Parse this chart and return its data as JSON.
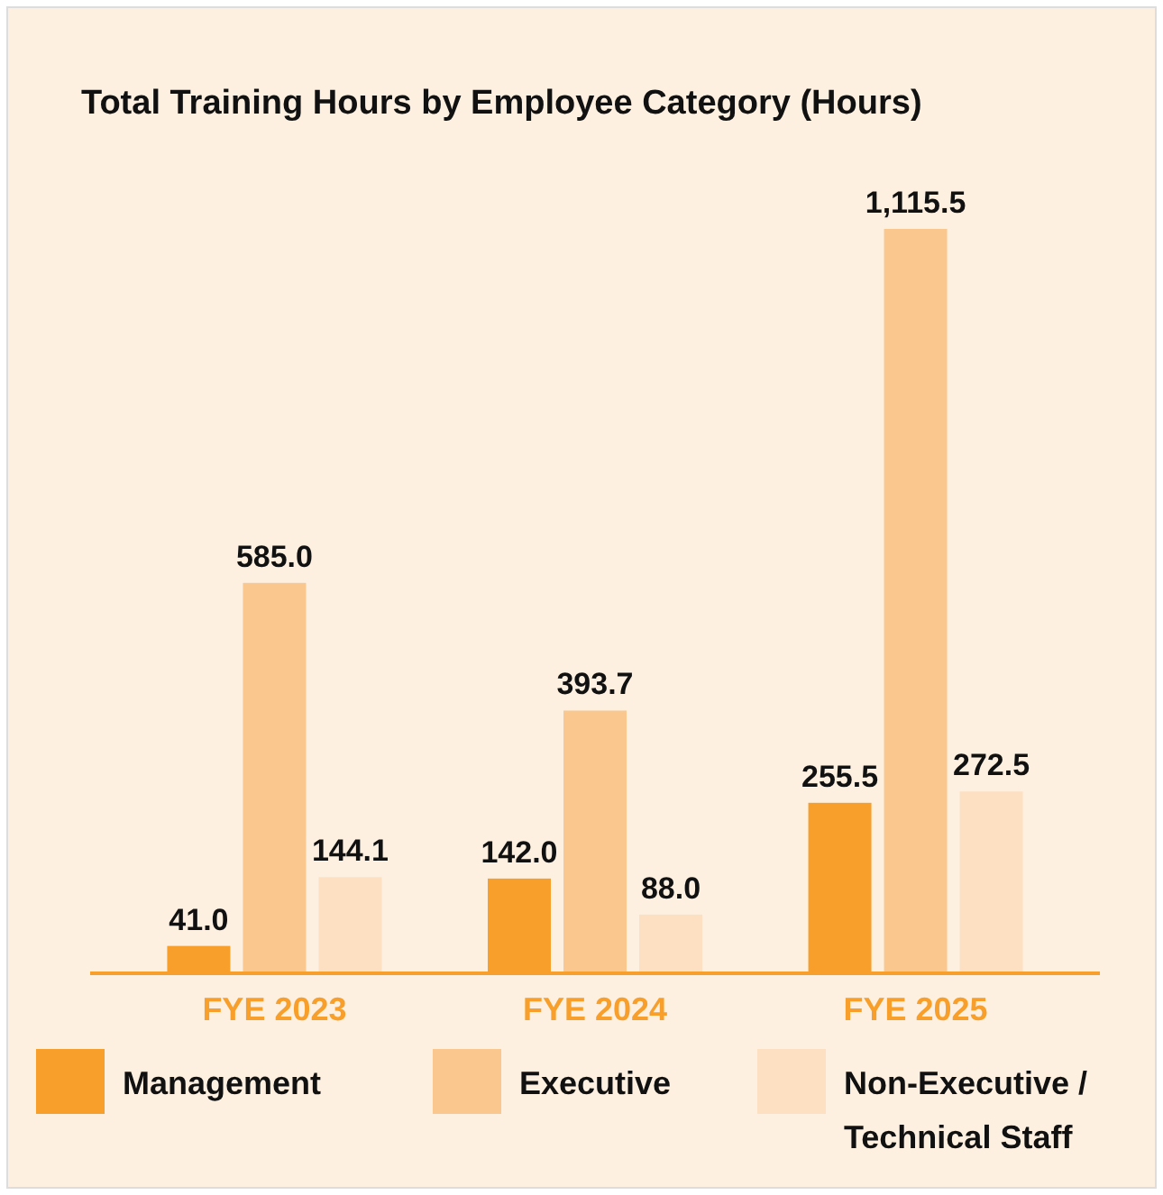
{
  "chart_data": {
    "type": "bar",
    "title": "Total Training Hours by Employee Category (Hours)",
    "categories": [
      "FYE 2023",
      "FYE 2024",
      "FYE 2025"
    ],
    "series": [
      {
        "name": "Management",
        "color": "#f79f2a",
        "values": [
          41.0,
          142.0,
          255.5
        ],
        "value_labels": [
          "41.0",
          "142.0",
          "255.5"
        ]
      },
      {
        "name": "Executive",
        "color": "#fac88e",
        "values": [
          585.0,
          393.7,
          1115.5
        ],
        "value_labels": [
          "585.0",
          "393.7",
          "1,115.5"
        ]
      },
      {
        "name": "Non-Executive / Technical Staff",
        "color": "#fde0c2",
        "values": [
          144.1,
          88.0,
          272.5
        ],
        "value_labels": [
          "144.1",
          "88.0",
          "272.5"
        ]
      }
    ],
    "legend": "bottom",
    "grid": false
  }
}
